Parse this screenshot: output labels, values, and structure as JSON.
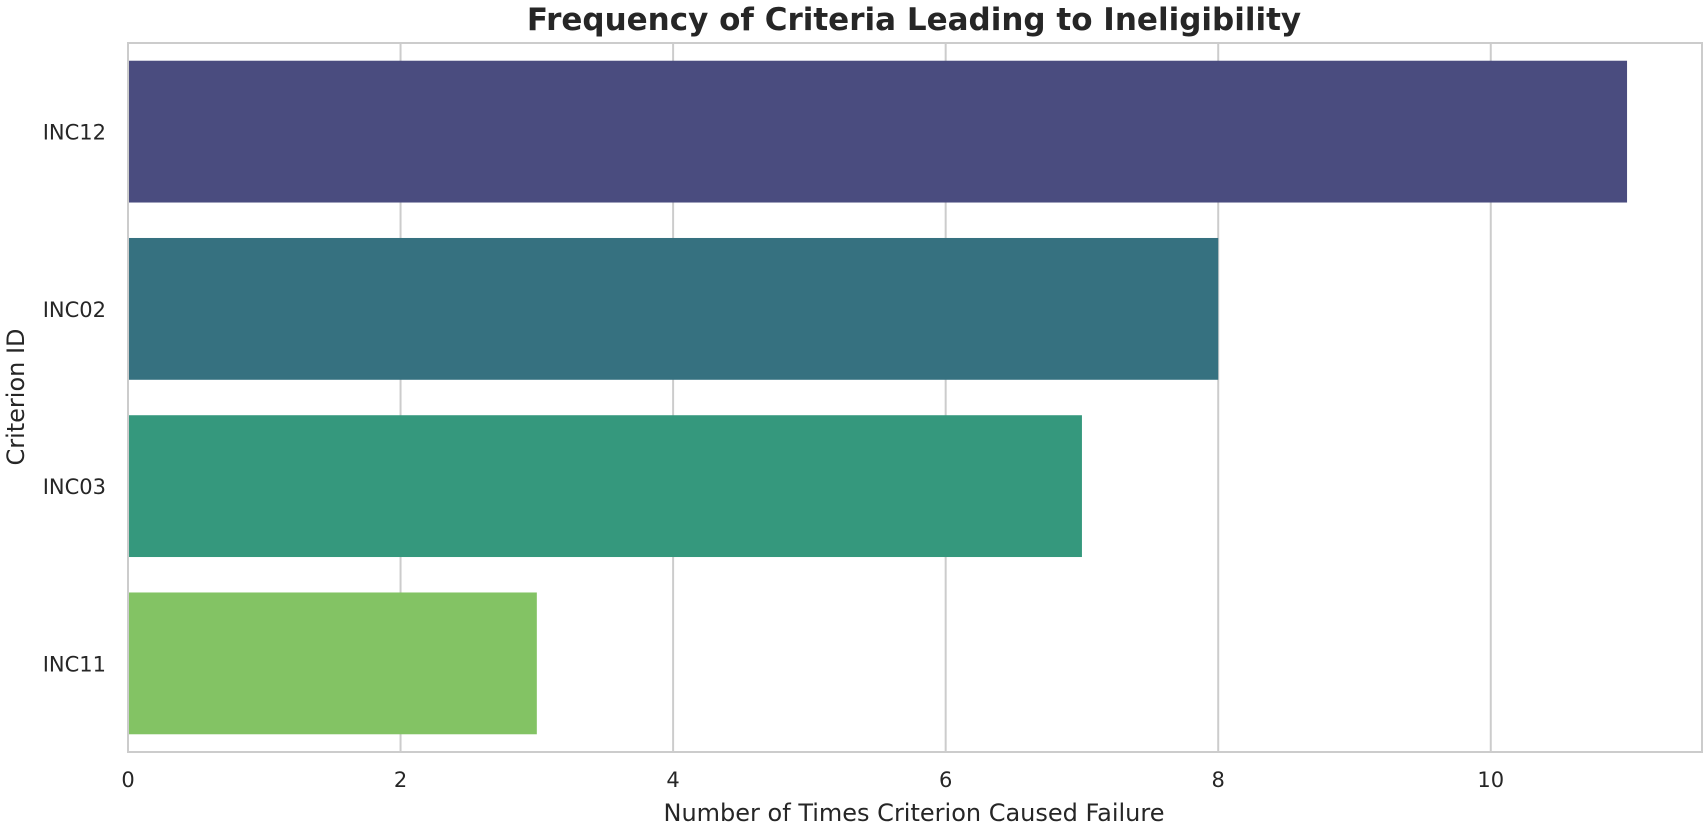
{
  "chart_data": {
    "type": "bar",
    "orientation": "horizontal",
    "title": "Frequency of Criteria Leading to Ineligibility",
    "xlabel": "Number of Times Criterion Caused Failure",
    "ylabel": "Criterion ID",
    "categories": [
      "INC12",
      "INC02",
      "INC03",
      "INC11"
    ],
    "values": [
      11,
      8,
      7,
      3
    ],
    "colors": [
      "#4a4c7f",
      "#367180",
      "#35987d",
      "#83c364"
    ],
    "xlim": [
      0,
      11.55
    ],
    "xticks": [
      0,
      2,
      4,
      6,
      8,
      10
    ],
    "grid": true
  }
}
